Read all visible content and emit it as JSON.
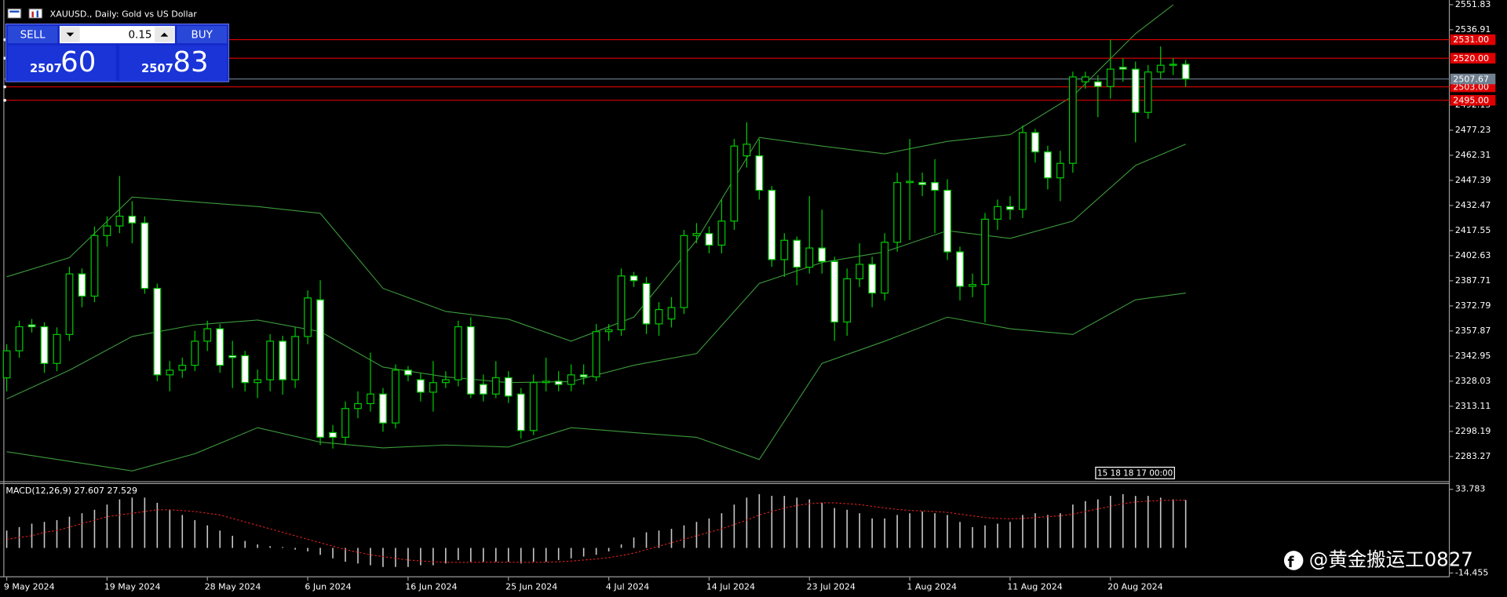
{
  "chart_data": [
    {
      "type": "candlestick",
      "title": "XAUUSD., Daily:  Gold vs US Dollar",
      "categories": [
        "9 May 2024",
        null,
        null,
        null,
        null,
        null,
        null,
        null,
        "19 May 2024",
        null,
        null,
        null,
        null,
        null,
        null,
        null,
        "28 May 2024",
        null,
        null,
        null,
        null,
        null,
        null,
        null,
        "6 Jun 2024",
        null,
        null,
        null,
        null,
        null,
        null,
        null,
        "16 Jun 2024",
        null,
        null,
        null,
        null,
        null,
        null,
        null,
        "25 Jun 2024",
        null,
        null,
        null,
        null,
        null,
        null,
        null,
        "4 Jul 2024",
        null,
        null,
        null,
        null,
        null,
        null,
        null,
        "14 Jul 2024",
        null,
        null,
        null,
        null,
        null,
        null,
        null,
        "23 Jul 2024",
        null,
        null,
        null,
        null,
        null,
        null,
        null,
        "1 Aug 2024",
        null,
        null,
        null,
        null,
        null,
        null,
        null,
        "11 Aug 2024",
        null,
        null,
        null,
        null,
        null,
        null,
        null,
        "20 Aug 2024",
        null,
        null,
        null,
        null,
        null,
        null
      ],
      "open": [
        2330,
        2346.1,
        2361.5,
        2360.4,
        2338.6,
        2355.8,
        2391.8,
        2378.6,
        2414.6,
        2420.3,
        2426.1,
        2422.1,
        2383.2,
        2331.8,
        2334.6,
        2337.5,
        2351.8,
        2359.2,
        2343.2,
        2343.2,
        2327.2,
        2328.9,
        2351.8,
        2328.9,
        2354.6,
        2376.4,
        2297.5,
        2294.7,
        2311.8,
        2314.7,
        2320.4,
        2303.2,
        2334.6,
        2328.9,
        2321.5,
        2327.2,
        2328.9,
        2360.4,
        2326.1,
        2320.4,
        2330.1,
        2320.4,
        2298.7,
        2327.2,
        2328.0,
        2326.1,
        2331.8,
        2330.6,
        2357.5,
        2358.6,
        2390.6,
        2386.1,
        2362.1,
        2365,
        2371.8,
        2414.6,
        2415.8,
        2408.9,
        2423.2,
        2462.0,
        2462.0,
        2441.5,
        2400.3,
        2411.8,
        2395.8,
        2407.2,
        2399.2,
        2363.2,
        2388.9,
        2397.5,
        2380.4,
        2410.6,
        2446.1,
        2446.1,
        2446.1,
        2441.5,
        2404.9,
        2384.4,
        2385.5,
        2424.3,
        2431.8,
        2430.1,
        2475.8,
        2464.3,
        2448.9,
        2457.5,
        2506.0,
        2506.0,
        2503.2,
        2514.6,
        2513.5,
        2487.8,
        2511.8,
        2515.8,
        2516.4
      ],
      "high": [
        2350,
        2364,
        2365,
        2363,
        2360,
        2396,
        2395,
        2420,
        2426,
        2450,
        2435,
        2426,
        2386,
        2340,
        2342,
        2358,
        2364,
        2362,
        2352,
        2346,
        2335,
        2356,
        2355,
        2360,
        2382,
        2388,
        2302,
        2316,
        2322,
        2345,
        2324,
        2338,
        2337,
        2333,
        2340,
        2334,
        2364,
        2366,
        2332,
        2340,
        2334,
        2324,
        2332,
        2342,
        2334,
        2338,
        2338,
        2362,
        2362,
        2395,
        2393,
        2390,
        2375,
        2378,
        2418,
        2422,
        2420,
        2436,
        2472,
        2482,
        2472,
        2444,
        2416,
        2414,
        2438,
        2430,
        2402,
        2395,
        2410,
        2402,
        2416,
        2452,
        2472,
        2452,
        2460,
        2448,
        2408,
        2392,
        2428,
        2436,
        2438,
        2480,
        2478,
        2468,
        2465,
        2512,
        2512,
        2510,
        2531,
        2520,
        2518,
        2516,
        2527,
        2520,
        2519
      ],
      "low": [
        2322,
        2342,
        2357,
        2333,
        2334,
        2352,
        2372,
        2375,
        2408,
        2416,
        2410,
        2380,
        2328,
        2322,
        2330,
        2334,
        2346,
        2333,
        2324,
        2322,
        2318,
        2322,
        2320,
        2324,
        2350,
        2290,
        2288,
        2290,
        2306,
        2310,
        2298,
        2300,
        2328,
        2316,
        2310,
        2324,
        2325,
        2318,
        2316,
        2318,
        2315,
        2294,
        2296,
        2322,
        2322,
        2322,
        2326,
        2328,
        2352,
        2355,
        2384,
        2356,
        2355,
        2360,
        2368,
        2410,
        2404,
        2404,
        2418,
        2455,
        2436,
        2396,
        2390,
        2385,
        2392,
        2392,
        2352,
        2355,
        2384,
        2372,
        2376,
        2405,
        2412,
        2438,
        2416,
        2400,
        2376,
        2378,
        2363,
        2418,
        2424,
        2425,
        2458,
        2442,
        2435,
        2452,
        2502,
        2485,
        2496,
        2506,
        2470,
        2484,
        2508,
        2510,
        2503
      ],
      "close": [
        2346.1,
        2360.4,
        2360.4,
        2338.6,
        2355.8,
        2391.8,
        2378.6,
        2414.6,
        2420.3,
        2426.1,
        2422.1,
        2383.2,
        2331.8,
        2334.6,
        2337.5,
        2351.8,
        2359.2,
        2337.5,
        2342.1,
        2327.2,
        2328.9,
        2351.8,
        2328.9,
        2354.6,
        2377.5,
        2294.7,
        2294.7,
        2311.8,
        2314.7,
        2320.4,
        2303.2,
        2334.6,
        2331.8,
        2321.5,
        2327.2,
        2328.9,
        2360.4,
        2320.4,
        2320.4,
        2330.1,
        2319.2,
        2298.7,
        2327.2,
        2328.0,
        2326.1,
        2331.8,
        2330.6,
        2357.5,
        2358.6,
        2390.6,
        2387.8,
        2362.1,
        2370.6,
        2371.8,
        2414.6,
        2415.8,
        2408.9,
        2423.2,
        2467.8,
        2468.9,
        2441.5,
        2400.3,
        2411.8,
        2395.8,
        2407.2,
        2399.2,
        2363.2,
        2388.9,
        2397.5,
        2380.4,
        2410.6,
        2446.1,
        2446.8,
        2444.9,
        2441.5,
        2404.9,
        2384.4,
        2385.5,
        2424.3,
        2431.8,
        2430.1,
        2475.8,
        2464.3,
        2448.9,
        2457.5,
        2508.9,
        2508.9,
        2503.2,
        2513.5,
        2513.5,
        2487.8,
        2511.8,
        2515.8,
        2516.4,
        2507.67
      ],
      "up_color": "#00c800",
      "down_color": "#ffffff",
      "bands": [
        {
          "color": "#3c9a3c",
          "x": [
            0,
            5,
            10,
            15,
            20,
            25,
            30,
            35,
            40,
            45,
            50,
            55,
            60,
            65,
            70,
            75,
            80,
            85,
            90,
            93
          ],
          "values": [
            2390.1,
            2401.5,
            2437.5,
            2434.6,
            2431.8,
            2427.8,
            2383.2,
            2369.5,
            2364.9,
            2351.8,
            2366.1,
            2411.8,
            2472.9,
            2467.8,
            2463.2,
            2470.6,
            2474.6,
            2497.5,
            2534.6,
            2551.7
          ]
        },
        {
          "color": "#3c9a3c",
          "x": [
            0,
            5,
            10,
            15,
            20,
            25,
            30,
            35,
            40,
            45,
            50,
            55,
            60,
            65,
            70,
            75,
            80,
            85,
            90,
            94
          ],
          "values": [
            2317.5,
            2334.6,
            2354.6,
            2361.5,
            2364.4,
            2357.5,
            2336.4,
            2330.6,
            2327.2,
            2327.8,
            2337.5,
            2344.4,
            2386.1,
            2398.6,
            2404.9,
            2417.5,
            2412.9,
            2423.2,
            2456.3,
            2468.9
          ]
        },
        {
          "color": "#3c9a3c",
          "x": [
            0,
            5,
            10,
            15,
            20,
            25,
            30,
            35,
            40,
            45,
            50,
            55,
            60,
            65,
            70,
            75,
            80,
            85,
            90,
            94
          ],
          "values": [
            2286.1,
            2280.4,
            2274.7,
            2284.9,
            2300.4,
            2291.8,
            2288.4,
            2290.1,
            2288.9,
            2300.4,
            2297.5,
            2294.7,
            2281.5,
            2338.6,
            2351.8,
            2366.1,
            2359.2,
            2355.8,
            2376.4,
            2380.4
          ]
        }
      ],
      "levels": [
        {
          "value": 2531,
          "label": "2531.00"
        },
        {
          "value": 2520,
          "label": "2520.00"
        },
        {
          "value": 2503,
          "label": "2503.00"
        },
        {
          "value": 2495,
          "label": "2495.00"
        }
      ],
      "level_color": "#e00000",
      "price_line_color": "#708090",
      "ylim": [
        2268.9,
        2554.6
      ],
      "yticks": [
        2551.83,
        2536.91,
        2492.15,
        2477.23,
        2462.31,
        2447.39,
        2432.47,
        2417.55,
        2402.63,
        2387.71,
        2372.79,
        2357.87,
        2342.95,
        2328.03,
        2313.11,
        2298.19,
        2283.27
      ],
      "timer": "15 18 18 17 00:00"
    },
    {
      "type": "macd",
      "title": "MACD(12,26,9) 27.607 27.529",
      "histogram": [
        10,
        12,
        14,
        15,
        16,
        18,
        20,
        22,
        25,
        28,
        29,
        29,
        26,
        22,
        19,
        16,
        13,
        10,
        7,
        4,
        2,
        1,
        0.5,
        -1,
        -2,
        -4,
        -6,
        -8,
        -9,
        -10,
        -11,
        -11,
        -11,
        -10,
        -10,
        -9,
        -7,
        -8,
        -8,
        -8,
        -8,
        -9,
        -8,
        -8,
        -7,
        -6,
        -5,
        -4,
        -2,
        2,
        6,
        9,
        10,
        11,
        13,
        15,
        17,
        20,
        25,
        29,
        31,
        30,
        30,
        29,
        28,
        26,
        23,
        22,
        20,
        17,
        17,
        19,
        20,
        21,
        20,
        19,
        15,
        12,
        13,
        14,
        15,
        19,
        20,
        19,
        20,
        25,
        27,
        28,
        30,
        31,
        30,
        30,
        29,
        28,
        27.607
      ],
      "signal": [
        5,
        6,
        7,
        9,
        10,
        12,
        14,
        16,
        18,
        19,
        20,
        21,
        22,
        22,
        21.5,
        21,
        20,
        19,
        17,
        15,
        13,
        11,
        9,
        7,
        5,
        3,
        1,
        -1,
        -2.5,
        -4,
        -5,
        -6,
        -7,
        -7.5,
        -8,
        -8.3,
        -8.3,
        -8.3,
        -8.2,
        -8.2,
        -8.2,
        -8.3,
        -8.3,
        -8.2,
        -8,
        -7.6,
        -7,
        -6.4,
        -5.6,
        -4.4,
        -3,
        -1,
        1,
        3,
        5,
        7,
        9,
        11,
        13.5,
        16,
        19,
        21,
        23,
        24.5,
        25.5,
        26,
        26,
        25.5,
        25,
        24,
        23,
        22.2,
        21.6,
        21.3,
        21,
        20.5,
        19.5,
        18.5,
        17.5,
        17,
        16.8,
        17,
        17.5,
        18,
        18.5,
        19.5,
        21,
        22.5,
        24,
        25.5,
        26.5,
        27,
        27.3,
        27.5,
        27.529
      ],
      "histogram_color": "#c8c8c8",
      "signal_color": "#e02020",
      "ylim": [
        -16.67,
        37.11
      ],
      "yticks": [
        33.783,
        -14.455
      ]
    }
  ],
  "trade_panel": {
    "sell": "SELL",
    "buy": "BUY",
    "volume": "0.15",
    "bid_big": "2507",
    "bid_small": "60",
    "ask_big": "2507",
    "ask_small": "83"
  },
  "watermark": "@黄金搬运工0827"
}
